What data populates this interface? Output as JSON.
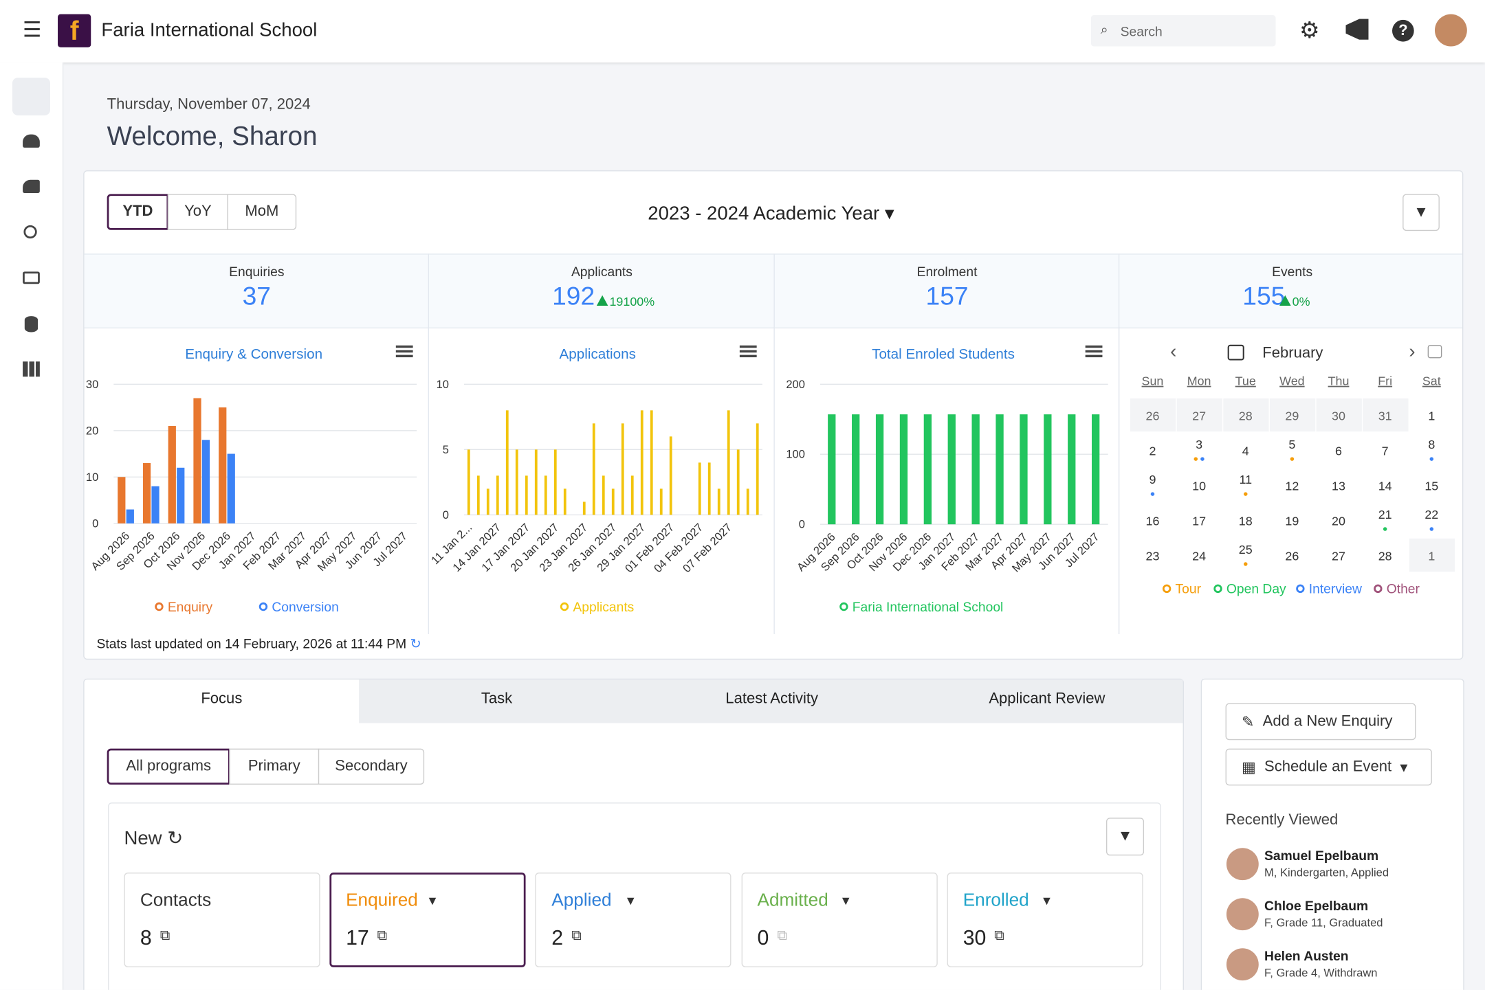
{
  "header": {
    "school": "Faria International School",
    "search_placeholder": "Search"
  },
  "welcome": {
    "date": "Thursday, November 07, 2024",
    "greeting": "Welcome, Sharon"
  },
  "period_tabs": [
    "YTD",
    "YoY",
    "MoM"
  ],
  "academic_year": "2023 - 2024 Academic Year",
  "kpis": [
    {
      "label": "Enquiries",
      "value": "37"
    },
    {
      "label": "Applicants",
      "value": "192",
      "change": "19100%"
    },
    {
      "label": "Enrolment",
      "value": "157"
    },
    {
      "label": "Events",
      "value": "155",
      "change": "0%"
    }
  ],
  "chart_data": [
    {
      "type": "bar",
      "title": "Enquiry & Conversion",
      "categories": [
        "Aug 2026",
        "Sep 2026",
        "Oct 2026",
        "Nov 2026",
        "Dec 2026",
        "Jan 2027",
        "Feb 2027",
        "Mar 2027",
        "Apr 2027",
        "May 2027",
        "Jun 2027",
        "Jul 2027"
      ],
      "series": [
        {
          "name": "Enquiry",
          "color": "#e8772e",
          "values": [
            10,
            13,
            21,
            27,
            25,
            0,
            0,
            0,
            0,
            0,
            0,
            0
          ]
        },
        {
          "name": "Conversion",
          "color": "#3b82f6",
          "values": [
            3,
            8,
            12,
            18,
            15,
            0,
            0,
            0,
            0,
            0,
            0,
            0
          ]
        }
      ],
      "ylim": [
        0,
        30
      ],
      "yticks": [
        0,
        10,
        20,
        30
      ],
      "grid": true
    },
    {
      "type": "bar",
      "title": "Applications",
      "categories": [
        "11 Jan 2...",
        null,
        null,
        "14 Jan 2027",
        null,
        null,
        "17 Jan 2027",
        null,
        null,
        "20 Jan 2027",
        null,
        null,
        "23 Jan 2027",
        null,
        null,
        "26 Jan 2027",
        null,
        null,
        "29 Jan 2027",
        null,
        null,
        "01 Feb 2027",
        null,
        null,
        "04 Feb 2027",
        null,
        null,
        "07 Feb 2027",
        null,
        null,
        null
      ],
      "series": [
        {
          "name": "Applicants",
          "color": "#f2c40c",
          "values": [
            5,
            3,
            2,
            3,
            8,
            5,
            3,
            5,
            3,
            5,
            2,
            0,
            1,
            7,
            3,
            2,
            7,
            3,
            8,
            8,
            2,
            6,
            0,
            0,
            4,
            4,
            2,
            8,
            5,
            2,
            7
          ]
        }
      ],
      "ylim": [
        0,
        10
      ],
      "yticks": [
        0,
        5,
        10
      ],
      "grid": true
    },
    {
      "type": "bar",
      "title": "Total Enroled Students",
      "categories": [
        "Aug 2026",
        "Sep 2026",
        "Oct 2026",
        "Nov 2026",
        "Dec 2026",
        "Jan 2027",
        "Feb 2027",
        "Mar 2027",
        "Apr 2027",
        "May 2027",
        "Jun 2027",
        "Jul 2027"
      ],
      "series": [
        {
          "name": "Faria International School",
          "color": "#22c55e",
          "values": [
            157,
            157,
            157,
            157,
            157,
            157,
            157,
            157,
            157,
            157,
            157,
            157
          ]
        }
      ],
      "ylim": [
        0,
        200
      ],
      "yticks": [
        0,
        100,
        200
      ],
      "grid": true
    }
  ],
  "calendar": {
    "month": "February",
    "weekdays": [
      "Sun",
      "Mon",
      "Tue",
      "Wed",
      "Thu",
      "Fri",
      "Sat"
    ],
    "days": [
      26,
      27,
      28,
      29,
      30,
      31,
      1,
      2,
      3,
      4,
      5,
      6,
      7,
      8,
      9,
      10,
      11,
      12,
      13,
      14,
      15,
      16,
      17,
      18,
      19,
      20,
      21,
      22,
      23,
      24,
      25,
      26,
      27,
      28,
      1
    ],
    "legend": [
      {
        "name": "Tour",
        "color": "#f59e0b"
      },
      {
        "name": "Open Day",
        "color": "#22c55e"
      },
      {
        "name": "Interview",
        "color": "#3b82f6"
      },
      {
        "name": "Other",
        "color": "#a0527a"
      }
    ]
  },
  "stats_updated": "Stats last updated on 14 February, 2026 at 11:44 PM",
  "tabs": [
    "Focus",
    "Task",
    "Latest Activity",
    "Applicant Review"
  ],
  "programs": [
    "All programs",
    "Primary",
    "Secondary"
  ],
  "pipeline": {
    "title": "New",
    "cards": [
      {
        "label": "Contacts",
        "count": "8"
      },
      {
        "label": "Enquired",
        "count": "17"
      },
      {
        "label": "Applied",
        "count": "2"
      },
      {
        "label": "Admitted",
        "count": "0"
      },
      {
        "label": "Enrolled",
        "count": "30"
      }
    ]
  },
  "actions": [
    "Add a New Enquiry",
    "Schedule an Event"
  ],
  "recent": {
    "title": "Recently Viewed",
    "people": [
      {
        "name": "Samuel Epelbaum",
        "detail": "M, Kindergarten, Applied"
      },
      {
        "name": "Chloe Epelbaum",
        "detail": "F, Grade 11, Graduated"
      },
      {
        "name": "Helen Austen",
        "detail": "F, Grade 4, Withdrawn"
      }
    ]
  }
}
